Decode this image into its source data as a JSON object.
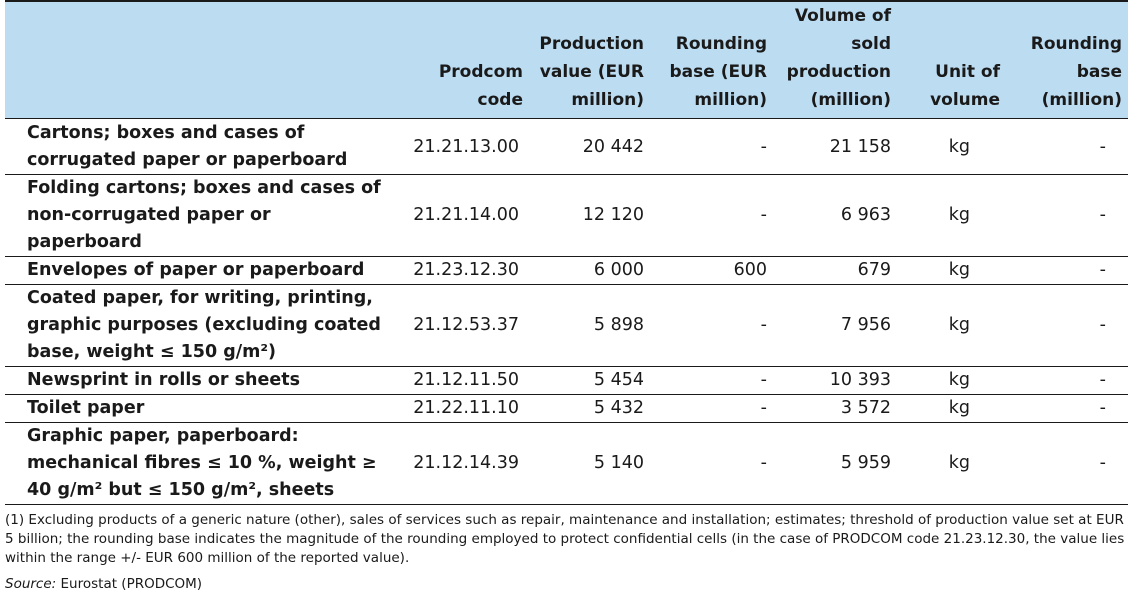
{
  "table": {
    "headers": [
      "",
      "Prodcom code",
      "Production value (EUR million)",
      "Rounding base (EUR million)",
      "Volume of sold production (million)",
      "Unit of volume",
      "Rounding base (million)"
    ],
    "rows": [
      {
        "label": "Cartons; boxes and cases of corrugated paper or paperboard",
        "code": "21.21.13.00",
        "value": "20 442",
        "rb_eur": "-",
        "volume": "21 158",
        "unit": "kg",
        "rb_vol": "-"
      },
      {
        "label": "Folding cartons; boxes and cases of non-corrugated paper or paperboard",
        "code": "21.21.14.00",
        "value": "12 120",
        "rb_eur": "-",
        "volume": "6 963",
        "unit": "kg",
        "rb_vol": "-"
      },
      {
        "label": "Envelopes of paper or paperboard",
        "code": "21.23.12.30",
        "value": "6 000",
        "rb_eur": "600",
        "volume": "679",
        "unit": "kg",
        "rb_vol": "-"
      },
      {
        "label": "Coated paper, for writing, printing, graphic purposes (excluding coated base, weight ≤ 150 g/m²)",
        "code": "21.12.53.37",
        "value": "5 898",
        "rb_eur": "-",
        "volume": "7 956",
        "unit": "kg",
        "rb_vol": "-"
      },
      {
        "label": "Newsprint in rolls or sheets",
        "code": "21.12.11.50",
        "value": "5 454",
        "rb_eur": "-",
        "volume": "10 393",
        "unit": "kg",
        "rb_vol": "-"
      },
      {
        "label": "Toilet paper",
        "code": "21.22.11.10",
        "value": "5 432",
        "rb_eur": "-",
        "volume": "3 572",
        "unit": "kg",
        "rb_vol": "-"
      },
      {
        "label": "Graphic paper, paperboard: mechanical fibres ≤ 10 %, weight ≥ 40 g/m² but ≤ 150 g/m², sheets",
        "code": "21.12.14.39",
        "value": "5 140",
        "rb_eur": "-",
        "volume": "5 959",
        "unit": "kg",
        "rb_vol": "-"
      }
    ]
  },
  "footnote": "(1) Excluding products of a generic nature (other), sales of services such as repair, maintenance and installation; estimates; threshold of production value set at EUR 5 billion; the rounding base indicates the magnitude of the rounding employed to protect confidential cells (in the case of PRODCOM code 21.23.12.30, the value lies within the range +/- EUR 600 million of the reported value).",
  "source_label": "Source:",
  "source_text": "Eurostat (PRODCOM)"
}
